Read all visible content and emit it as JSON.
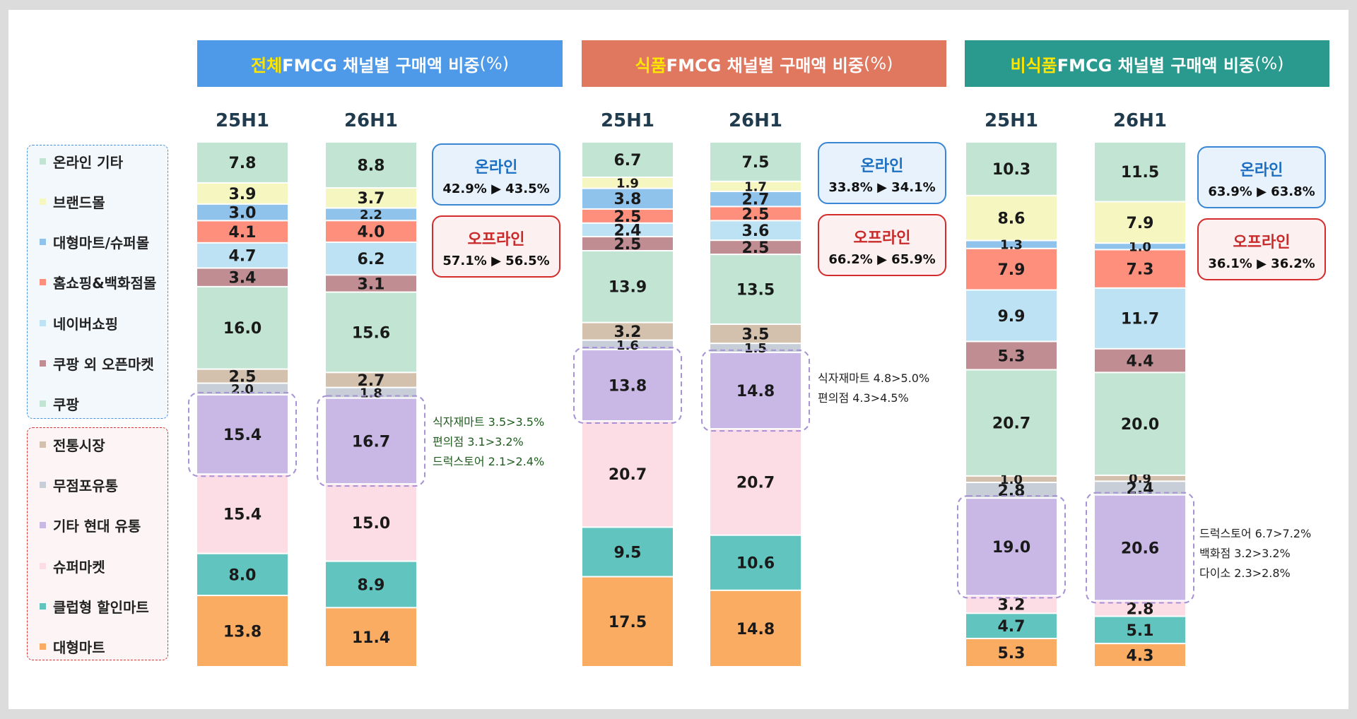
{
  "colors": {
    "대형마트": "#fbac63",
    "클럽형 할인마트": "#62c4be",
    "슈퍼마켓": "#fddde5",
    "기타 현대 유통": "#c9b8e6",
    "무점포유통": "#c7ced8",
    "전통시장": "#d3c1ad",
    "쿠팡": "#c1e5d2",
    "쿠팡 외 오픈마켓": "#c08d93",
    "네이버쇼핑": "#bde2f4",
    "홈쇼핑&백화점몰": "#fd8f7c",
    "대형마트/슈퍼몰": "#8fc3ec",
    "브랜드몰": "#f6f6c0",
    "온라인 기타": "#c1e5d2"
  },
  "legend": {
    "online": [
      "온라인 기타",
      "브랜드몰",
      "대형마트/슈퍼몰",
      "홈쇼핑&백화점몰",
      "네이버쇼핑",
      "쿠팡 외 오픈마켓",
      "쿠팡"
    ],
    "offline": [
      "전통시장",
      "무점포유통",
      "기타 현대 유통",
      "슈퍼마켓",
      "클럽형 할인마트",
      "대형마트"
    ]
  },
  "panels": [
    {
      "title_highlight": "전체",
      "title_rest": " FMCG  채널별 구매액 비중",
      "title_unit": "(%)",
      "title_color": "#4e9ae8",
      "online_callout": {
        "title": "온라인",
        "value": "42.9% ▶ 43.5%"
      },
      "offline_callout": {
        "title": "오프라인",
        "value": "57.1% ▶ 56.5%"
      },
      "note": [
        "식자재마트 3.5>3.5%",
        "편의점 3.1>3.2%",
        "드럭스토어 2.1>2.4%"
      ]
    },
    {
      "title_highlight": "식품",
      "title_rest": " FMCG 채널별 구매액 비중",
      "title_unit": "(%)",
      "title_color": "#e07860",
      "online_callout": {
        "title": "온라인",
        "value": "33.8% ▶ 34.1%"
      },
      "offline_callout": {
        "title": "오프라인",
        "value": "66.2% ▶ 65.9%"
      },
      "note": [
        "식자재마트 4.8>5.0%",
        "편의점 4.3>4.5%"
      ]
    },
    {
      "title_highlight": "비식품",
      "title_rest": " FMCG 채널별 구매액 비중",
      "title_unit": "(%)",
      "title_color": "#2a9a8e",
      "online_callout": {
        "title": "온라인",
        "value": "63.9% ▶ 63.8%"
      },
      "offline_callout": {
        "title": "오프라인",
        "value": "36.1% ▶ 36.2%"
      },
      "note": [
        "드럭스토어 6.7>7.2%",
        "백화점 3.2>3.2%",
        "다이소 2.3>2.8%"
      ]
    }
  ],
  "chart_data": {
    "type": "bar",
    "stacked": true,
    "normalized": true,
    "unit": "%",
    "stack_order_bottom_to_top": [
      "대형마트",
      "클럽형 할인마트",
      "슈퍼마켓",
      "기타 현대 유통",
      "무점포유통",
      "전통시장",
      "쿠팡",
      "쿠팡 외 오픈마켓",
      "네이버쇼핑",
      "홈쇼핑&백화점몰",
      "대형마트/슈퍼몰",
      "브랜드몰",
      "온라인 기타"
    ],
    "highlighted_segment": "기타 현대 유통",
    "panels": [
      {
        "name": "전체",
        "bars": [
          {
            "period": "25H1",
            "values": [
              13.8,
              8.0,
              15.4,
              15.4,
              2.0,
              2.5,
              16.0,
              3.4,
              4.7,
              4.1,
              3.0,
              3.9,
              7.8
            ]
          },
          {
            "period": "26H1",
            "values": [
              11.4,
              8.9,
              15.0,
              16.7,
              1.8,
              2.7,
              15.6,
              3.1,
              6.2,
              4.0,
              2.2,
              3.7,
              8.8
            ]
          }
        ]
      },
      {
        "name": "식품",
        "bars": [
          {
            "period": "25H1",
            "values": [
              17.5,
              9.5,
              20.7,
              13.8,
              1.6,
              3.2,
              13.9,
              2.5,
              2.4,
              2.5,
              3.8,
              1.9,
              6.7
            ]
          },
          {
            "period": "26H1",
            "values": [
              14.8,
              10.6,
              20.7,
              14.8,
              1.5,
              3.5,
              13.5,
              2.5,
              3.6,
              2.5,
              2.7,
              1.7,
              7.5
            ]
          }
        ]
      },
      {
        "name": "비식품",
        "bars": [
          {
            "period": "25H1",
            "values": [
              5.3,
              4.7,
              3.2,
              19.0,
              2.8,
              1.0,
              20.7,
              5.3,
              9.9,
              7.9,
              1.3,
              8.6,
              10.3
            ]
          },
          {
            "period": "26H1",
            "values": [
              4.3,
              5.1,
              2.8,
              20.6,
              2.4,
              0.9,
              20.0,
              4.4,
              11.7,
              7.3,
              1.0,
              7.9,
              11.5
            ]
          }
        ]
      }
    ]
  }
}
